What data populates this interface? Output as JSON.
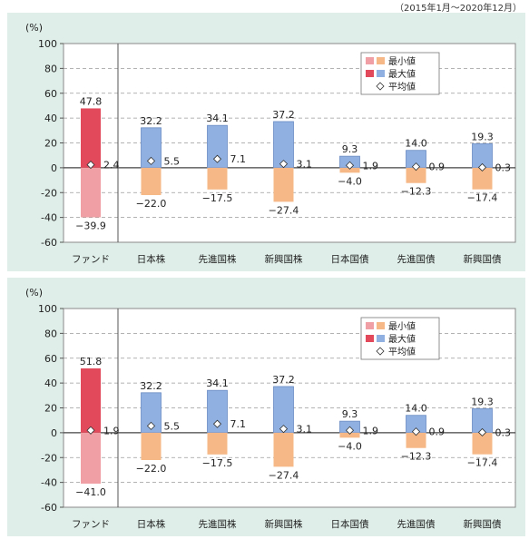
{
  "header_note": "（2015年1月～2020年12月）",
  "chart_data": [
    {
      "type": "bar",
      "unit_label": "(%)",
      "ylim": [
        -60,
        100
      ],
      "yticks": [
        100,
        80,
        60,
        40,
        20,
        0,
        -20,
        -40,
        -60
      ],
      "grid": true,
      "legend_placement": "top-right",
      "legend": [
        "最小値",
        "最大値",
        "平均値"
      ],
      "categories": [
        "ファンド",
        "日本株",
        "先進国株",
        "新興国株",
        "日本国債",
        "先進国債",
        "新興国債"
      ],
      "series": [
        {
          "name": "最大値",
          "values": [
            47.8,
            32.2,
            34.1,
            37.2,
            9.3,
            14.0,
            19.3
          ]
        },
        {
          "name": "最小値",
          "values": [
            -39.9,
            -22.0,
            -17.5,
            -27.4,
            -4.0,
            -12.3,
            -17.4
          ]
        },
        {
          "name": "平均値",
          "values": [
            2.4,
            5.5,
            7.1,
            3.1,
            1.9,
            0.9,
            0.3
          ]
        }
      ],
      "max_labels": [
        "47.8",
        "32.2",
        "34.1",
        "37.2",
        "9.3",
        "14.0",
        "19.3"
      ],
      "min_labels": [
        "−39.9",
        "−22.0",
        "−17.5",
        "−27.4",
        "−4.0",
        "−12.3",
        "−17.4"
      ],
      "avg_labels": [
        "2.4",
        "5.5",
        "7.1",
        "3.1",
        "1.9",
        "0.9",
        "0.3"
      ],
      "colors": {
        "fund_max": "#e24a5c",
        "fund_min": "#f0a0a4",
        "asset_max": "#8fb0e0",
        "asset_min": "#f5b886",
        "avg_marker": "#ffffff"
      }
    },
    {
      "type": "bar",
      "unit_label": "(%)",
      "ylim": [
        -60,
        100
      ],
      "yticks": [
        100,
        80,
        60,
        40,
        20,
        0,
        -20,
        -40,
        -60
      ],
      "grid": true,
      "legend_placement": "top-right",
      "legend": [
        "最小値",
        "最大値",
        "平均値"
      ],
      "categories": [
        "ファンド",
        "日本株",
        "先進国株",
        "新興国株",
        "日本国債",
        "先進国債",
        "新興国債"
      ],
      "series": [
        {
          "name": "最大値",
          "values": [
            51.8,
            32.2,
            34.1,
            37.2,
            9.3,
            14.0,
            19.3
          ]
        },
        {
          "name": "最小値",
          "values": [
            -41.0,
            -22.0,
            -17.5,
            -27.4,
            -4.0,
            -12.3,
            -17.4
          ]
        },
        {
          "name": "平均値",
          "values": [
            1.9,
            5.5,
            7.1,
            3.1,
            1.9,
            0.9,
            0.3
          ]
        }
      ],
      "max_labels": [
        "51.8",
        "32.2",
        "34.1",
        "37.2",
        "9.3",
        "14.0",
        "19.3"
      ],
      "min_labels": [
        "−41.0",
        "−22.0",
        "−17.5",
        "−27.4",
        "−4.0",
        "−12.3",
        "−17.4"
      ],
      "avg_labels": [
        "1.9",
        "5.5",
        "7.1",
        "3.1",
        "1.9",
        "0.9",
        "0.3"
      ],
      "colors": {
        "fund_max": "#e24a5c",
        "fund_min": "#f0a0a4",
        "asset_max": "#8fb0e0",
        "asset_min": "#f5b886",
        "avg_marker": "#ffffff"
      }
    }
  ]
}
